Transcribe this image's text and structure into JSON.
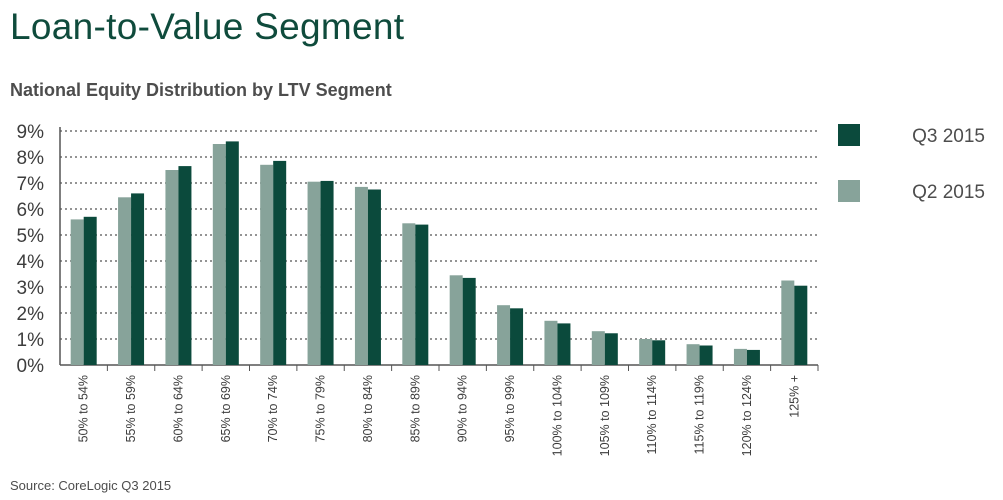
{
  "title": "Loan-to-Value Segment",
  "subtitle": "National Equity Distribution by LTV Segment",
  "source": "Source: CoreLogic Q3 2015",
  "colors": {
    "q3": "#0b4a3c",
    "q2": "#87a39a",
    "title": "#0f4b3c"
  },
  "chart_data": {
    "type": "bar",
    "categories": [
      "50% to 54%",
      "55% to 59%",
      "60% to 64%",
      "65% to 69%",
      "70% to 74%",
      "75% to 79%",
      "80% to 84%",
      "85% to 89%",
      "90% to 94%",
      "95% to 99%",
      "100% to 104%",
      "105% to 109%",
      "110% to 114%",
      "115% to 119%",
      "120% to 124%",
      "125% +"
    ],
    "series": [
      {
        "name": "Q2 2015",
        "color": "#87a39a",
        "values": [
          5.6,
          6.45,
          7.5,
          8.5,
          7.7,
          7.05,
          6.85,
          5.45,
          3.45,
          2.3,
          1.7,
          1.3,
          1.0,
          0.8,
          0.62,
          3.25
        ]
      },
      {
        "name": "Q3 2015",
        "color": "#0b4a3c",
        "values": [
          5.7,
          6.6,
          7.65,
          8.6,
          7.85,
          7.08,
          6.75,
          5.4,
          3.35,
          2.18,
          1.6,
          1.22,
          0.95,
          0.75,
          0.58,
          3.05
        ]
      }
    ],
    "yticks": [
      "0%",
      "1%",
      "2%",
      "3%",
      "4%",
      "5%",
      "6%",
      "7%",
      "8%",
      "9%"
    ],
    "ylim": [
      0,
      9
    ],
    "grid": true,
    "legend": {
      "placement": "right",
      "entries": [
        {
          "label": "Q3 2015",
          "color": "#0b4a3c"
        },
        {
          "label": "Q2 2015",
          "color": "#87a39a"
        }
      ]
    }
  }
}
